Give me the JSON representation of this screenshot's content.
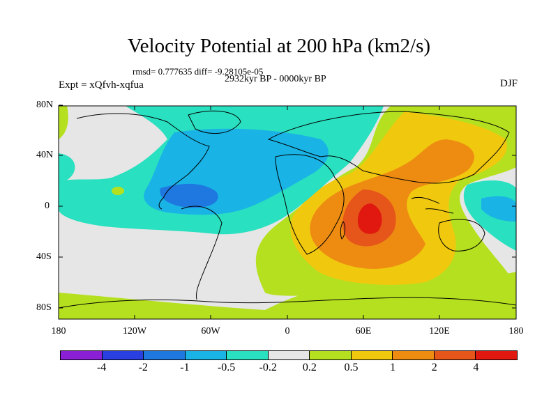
{
  "title": "Velocity Potential at 200 hPa (km2/s)",
  "stats": "rmsd= 0.777635 diff= -9.28105e-05",
  "experiment": "Expt = xQfvh-xqfua",
  "period": "2932kyr BP - 0000kyr BP",
  "season": "DJF",
  "lon_labels": [
    "180",
    "120W",
    "60W",
    "0",
    "60E",
    "120E",
    "180"
  ],
  "lat_labels": [
    "80N",
    "40N",
    "0",
    "40S",
    "80S"
  ],
  "colorbar": {
    "colors": [
      "#8a1fd6",
      "#2a3fe0",
      "#1f78e0",
      "#19b3e6",
      "#29e0c0",
      "#e6e6e6",
      "#b5e01f",
      "#f0c90f",
      "#ee8c12",
      "#e6551a",
      "#e0180f"
    ],
    "labels": [
      "-4",
      "-2",
      "-1",
      "-0.5",
      "-0.2",
      "0.2",
      "0.5",
      "1",
      "2",
      "4"
    ]
  },
  "field_colors": {
    "ocean_neutral": "#e6e6e6",
    "weak_neg": "#29e0c0",
    "mod_neg": "#19b3e6",
    "strong_neg": "#1f78e0",
    "weak_pos": "#b5e01f",
    "mod_pos": "#f0c90f",
    "strong_pos": "#ee8c12",
    "max_pos": "#e6551a"
  }
}
